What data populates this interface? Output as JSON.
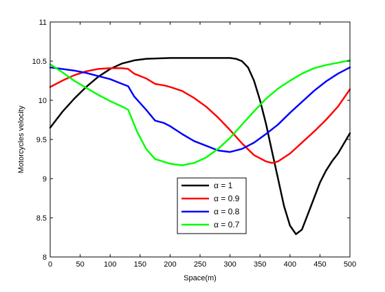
{
  "chart_data": {
    "type": "line",
    "title": "",
    "xlabel": "Space(m)",
    "ylabel": "Motorcycles velocity",
    "xlim": [
      0,
      500
    ],
    "ylim": [
      8,
      11
    ],
    "xticks": [
      0,
      50,
      100,
      150,
      200,
      250,
      300,
      350,
      400,
      450,
      500
    ],
    "yticks": [
      8,
      8.5,
      9,
      9.5,
      10,
      10.5,
      11
    ],
    "xtick_labels": [
      "0",
      "50",
      "100",
      "150",
      "200",
      "250",
      "300",
      "350",
      "400",
      "450",
      "500"
    ],
    "ytick_labels": [
      "8",
      "8.5",
      "9",
      "9.5",
      "10",
      "10.5",
      "11"
    ],
    "grid": false,
    "legend_position": "bottom-center",
    "series": [
      {
        "name": "α = 1",
        "color": "#000000",
        "points": [
          [
            0,
            9.65
          ],
          [
            20,
            9.85
          ],
          [
            40,
            10.02
          ],
          [
            60,
            10.17
          ],
          [
            80,
            10.3
          ],
          [
            100,
            10.4
          ],
          [
            120,
            10.47
          ],
          [
            140,
            10.51
          ],
          [
            160,
            10.53
          ],
          [
            200,
            10.54
          ],
          [
            250,
            10.54
          ],
          [
            300,
            10.54
          ],
          [
            310,
            10.53
          ],
          [
            320,
            10.5
          ],
          [
            330,
            10.42
          ],
          [
            340,
            10.25
          ],
          [
            350,
            10.0
          ],
          [
            360,
            9.7
          ],
          [
            370,
            9.35
          ],
          [
            380,
            9.0
          ],
          [
            390,
            8.65
          ],
          [
            400,
            8.4
          ],
          [
            410,
            8.29
          ],
          [
            420,
            8.35
          ],
          [
            430,
            8.55
          ],
          [
            440,
            8.75
          ],
          [
            450,
            8.95
          ],
          [
            460,
            9.1
          ],
          [
            470,
            9.22
          ],
          [
            480,
            9.32
          ],
          [
            490,
            9.45
          ],
          [
            500,
            9.58
          ]
        ]
      },
      {
        "name": "α = 0.9",
        "color": "#ff0000",
        "points": [
          [
            0,
            10.17
          ],
          [
            20,
            10.25
          ],
          [
            40,
            10.32
          ],
          [
            60,
            10.37
          ],
          [
            80,
            10.4
          ],
          [
            100,
            10.41
          ],
          [
            120,
            10.41
          ],
          [
            130,
            10.4
          ],
          [
            140,
            10.34
          ],
          [
            160,
            10.28
          ],
          [
            175,
            10.21
          ],
          [
            190,
            10.19
          ],
          [
            200,
            10.17
          ],
          [
            220,
            10.12
          ],
          [
            240,
            10.03
          ],
          [
            260,
            9.92
          ],
          [
            280,
            9.78
          ],
          [
            300,
            9.62
          ],
          [
            320,
            9.45
          ],
          [
            340,
            9.3
          ],
          [
            360,
            9.22
          ],
          [
            370,
            9.2
          ],
          [
            380,
            9.22
          ],
          [
            400,
            9.32
          ],
          [
            420,
            9.46
          ],
          [
            440,
            9.6
          ],
          [
            460,
            9.75
          ],
          [
            480,
            9.92
          ],
          [
            500,
            10.14
          ]
        ]
      },
      {
        "name": "α = 0.8",
        "color": "#0000ff",
        "points": [
          [
            0,
            10.42
          ],
          [
            20,
            10.4
          ],
          [
            40,
            10.38
          ],
          [
            60,
            10.35
          ],
          [
            80,
            10.31
          ],
          [
            100,
            10.27
          ],
          [
            120,
            10.21
          ],
          [
            130,
            10.18
          ],
          [
            140,
            10.05
          ],
          [
            160,
            9.88
          ],
          [
            175,
            9.74
          ],
          [
            190,
            9.71
          ],
          [
            200,
            9.67
          ],
          [
            220,
            9.57
          ],
          [
            240,
            9.48
          ],
          [
            260,
            9.42
          ],
          [
            280,
            9.36
          ],
          [
            300,
            9.34
          ],
          [
            320,
            9.38
          ],
          [
            340,
            9.46
          ],
          [
            360,
            9.57
          ],
          [
            380,
            9.69
          ],
          [
            400,
            9.84
          ],
          [
            420,
            9.98
          ],
          [
            440,
            10.12
          ],
          [
            460,
            10.24
          ],
          [
            480,
            10.34
          ],
          [
            500,
            10.42
          ]
        ]
      },
      {
        "name": "α = 0.7",
        "color": "#00ff00",
        "points": [
          [
            0,
            10.46
          ],
          [
            20,
            10.36
          ],
          [
            40,
            10.25
          ],
          [
            60,
            10.16
          ],
          [
            80,
            10.07
          ],
          [
            100,
            9.99
          ],
          [
            120,
            9.92
          ],
          [
            130,
            9.88
          ],
          [
            145,
            9.6
          ],
          [
            160,
            9.38
          ],
          [
            175,
            9.25
          ],
          [
            200,
            9.19
          ],
          [
            220,
            9.17
          ],
          [
            240,
            9.2
          ],
          [
            260,
            9.27
          ],
          [
            280,
            9.38
          ],
          [
            300,
            9.52
          ],
          [
            320,
            9.69
          ],
          [
            340,
            9.86
          ],
          [
            360,
            10.02
          ],
          [
            380,
            10.15
          ],
          [
            400,
            10.25
          ],
          [
            420,
            10.34
          ],
          [
            440,
            10.41
          ],
          [
            460,
            10.45
          ],
          [
            480,
            10.48
          ],
          [
            500,
            10.51
          ]
        ]
      }
    ]
  }
}
